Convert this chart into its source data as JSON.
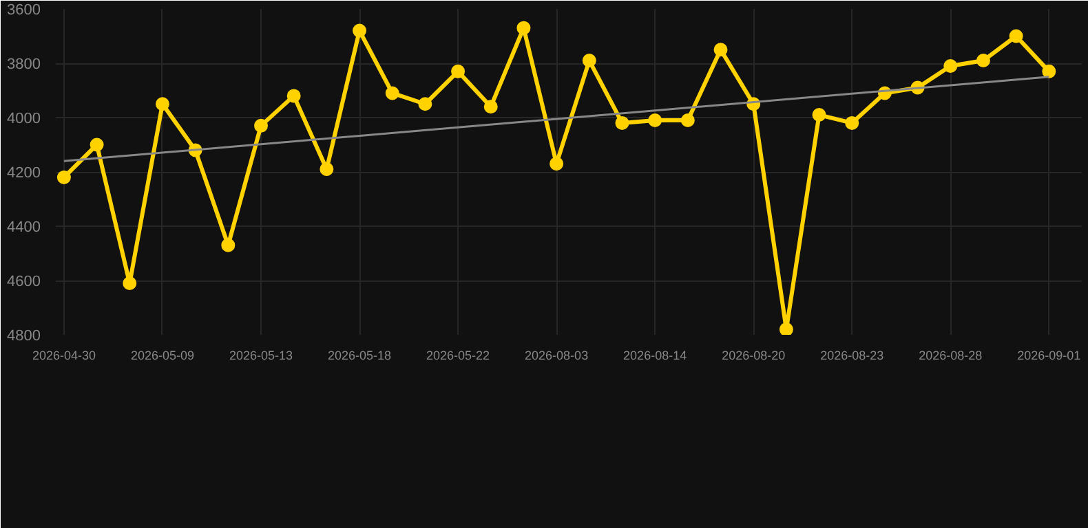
{
  "chart_data": {
    "type": "line",
    "categories": [
      "2026-04-30",
      null,
      null,
      "2026-05-09",
      null,
      null,
      "2026-05-13",
      null,
      null,
      "2026-05-18",
      null,
      null,
      "2026-05-22",
      null,
      null,
      "2026-08-03",
      null,
      null,
      "2026-08-14",
      null,
      null,
      "2026-08-20",
      null,
      null,
      "2026-08-23",
      null,
      null,
      "2026-08-28",
      null,
      null,
      "2026-09-01"
    ],
    "series": [
      {
        "color": "#ffd200",
        "marker": "circle",
        "values": [
          4220,
          4100,
          4610,
          3950,
          4120,
          4470,
          4030,
          3920,
          4190,
          3680,
          3910,
          3950,
          3830,
          3960,
          3670,
          4170,
          3790,
          4020,
          4010,
          4010,
          3750,
          3950,
          4780,
          3990,
          4020,
          3910,
          3890,
          3810,
          3790,
          3700,
          3830
        ]
      },
      {
        "type": "line",
        "color": "#888888",
        "marker": "none",
        "values": [
          4160,
          null,
          null,
          null,
          null,
          null,
          null,
          null,
          null,
          null,
          null,
          null,
          null,
          null,
          null,
          null,
          null,
          null,
          null,
          null,
          null,
          null,
          null,
          null,
          null,
          null,
          null,
          null,
          null,
          null,
          3850
        ]
      }
    ],
    "ylim": [
      4800,
      3600
    ],
    "yticks": [
      3600,
      3800,
      4000,
      4200,
      4400,
      4600,
      4800
    ],
    "grid": true
  }
}
